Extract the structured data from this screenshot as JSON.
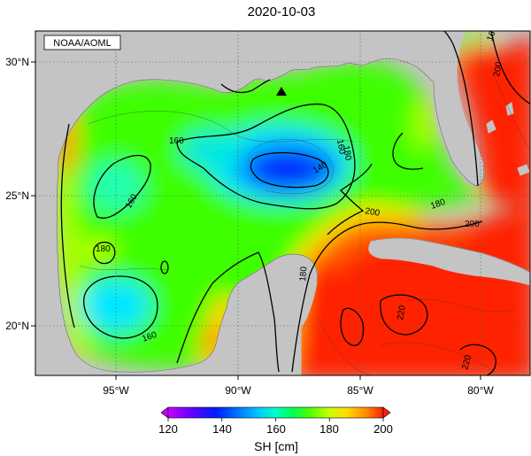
{
  "title": "2020-10-03",
  "credit": "NOAA/AOML",
  "lon_labels": [
    "95°W",
    "90°W",
    "85°W",
    "80°W"
  ],
  "lat_labels": [
    "30°N",
    "25°N",
    "20°N"
  ],
  "contour_labels": [
    "160",
    "160",
    "160",
    "160",
    "180",
    "140",
    "160",
    "180",
    "200",
    "200",
    "180",
    "220",
    "220",
    "200",
    "180"
  ],
  "colorbar": {
    "ticks": [
      "120",
      "140",
      "160",
      "180",
      "200"
    ],
    "label": "SH [cm]",
    "colors": [
      "#c800ff",
      "#6a00ff",
      "#0019ff",
      "#0070ff",
      "#00c8ff",
      "#00ffc8",
      "#00ff50",
      "#50ff00",
      "#c8ff00",
      "#ffdc00",
      "#ff8c00",
      "#ff2000"
    ]
  },
  "colors": {
    "land": "#c4c4c4",
    "border": "#000000",
    "graticule": "#555555"
  }
}
